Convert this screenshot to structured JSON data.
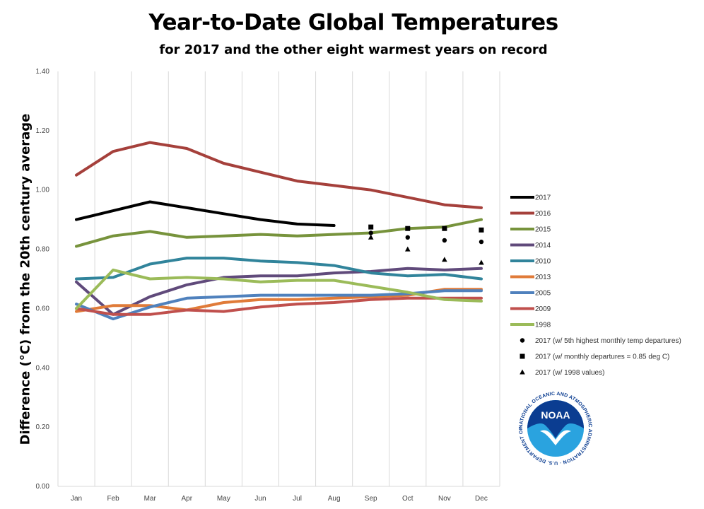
{
  "chart_data": {
    "type": "line",
    "title": "Year-to-Date Global Temperatures",
    "subtitle": "for 2017 and the other eight warmest years on record",
    "xlabel": "",
    "ylabel": "Difference (°C) from the 20th century average",
    "ylim": [
      0,
      1.4
    ],
    "yticks": [
      "0.00",
      "0.20",
      "0.40",
      "0.60",
      "0.80",
      "1.00",
      "1.20",
      "1.40"
    ],
    "categories": [
      "Jan",
      "Feb",
      "Mar",
      "Apr",
      "May",
      "Jun",
      "Jul",
      "Aug",
      "Sep",
      "Oct",
      "Nov",
      "Dec"
    ],
    "legend_position": "right",
    "grid": "vertical",
    "series": [
      {
        "name": "2017",
        "color": "#000000",
        "width": 4,
        "values": [
          0.9,
          0.93,
          0.96,
          0.94,
          0.92,
          0.9,
          0.885,
          0.88,
          null,
          null,
          null,
          null
        ]
      },
      {
        "name": "2016",
        "color": "#A5403B",
        "width": 4,
        "values": [
          1.05,
          1.13,
          1.16,
          1.14,
          1.09,
          1.06,
          1.03,
          1.015,
          1.0,
          0.975,
          0.95,
          0.94
        ]
      },
      {
        "name": "2015",
        "color": "#77933C",
        "width": 4,
        "values": [
          0.81,
          0.845,
          0.86,
          0.84,
          0.845,
          0.85,
          0.845,
          0.85,
          0.855,
          0.87,
          0.875,
          0.9
        ]
      },
      {
        "name": "2014",
        "color": "#604A7B",
        "width": 4,
        "values": [
          0.69,
          0.58,
          0.64,
          0.68,
          0.705,
          0.71,
          0.71,
          0.72,
          0.725,
          0.735,
          0.73,
          0.735
        ]
      },
      {
        "name": "2010",
        "color": "#31849B",
        "width": 4,
        "values": [
          0.7,
          0.705,
          0.75,
          0.77,
          0.77,
          0.76,
          0.755,
          0.745,
          0.72,
          0.71,
          0.715,
          0.7
        ]
      },
      {
        "name": "2013",
        "color": "#E07B39",
        "width": 4,
        "values": [
          0.59,
          0.61,
          0.61,
          0.595,
          0.62,
          0.63,
          0.63,
          0.635,
          0.64,
          0.645,
          0.665,
          0.665
        ]
      },
      {
        "name": "2005",
        "color": "#4F81BD",
        "width": 4,
        "values": [
          0.615,
          0.565,
          0.605,
          0.635,
          0.64,
          0.645,
          0.645,
          0.645,
          0.645,
          0.65,
          0.66,
          0.66
        ]
      },
      {
        "name": "2009",
        "color": "#C0504D",
        "width": 4,
        "values": [
          0.6,
          0.58,
          0.58,
          0.595,
          0.59,
          0.605,
          0.615,
          0.62,
          0.63,
          0.635,
          0.635,
          0.635
        ]
      },
      {
        "name": "1998",
        "color": "#9BBB59",
        "width": 4,
        "values": [
          0.6,
          0.73,
          0.7,
          0.705,
          0.7,
          0.69,
          0.695,
          0.695,
          0.675,
          0.655,
          0.63,
          0.625
        ]
      }
    ],
    "marker_series": [
      {
        "name": "2017 (w/ 5th highest monthly temp departures)",
        "marker": "circle",
        "x": [
          "Sep",
          "Oct",
          "Nov",
          "Dec"
        ],
        "values": [
          0.855,
          0.84,
          0.83,
          0.825
        ]
      },
      {
        "name": "2017 (w/ monthly departures = 0.85 deg C)",
        "marker": "square",
        "x": [
          "Sep",
          "Oct",
          "Nov",
          "Dec"
        ],
        "values": [
          0.875,
          0.87,
          0.87,
          0.865
        ]
      },
      {
        "name": "2017 (w/ 1998 values)",
        "marker": "triangle",
        "x": [
          "Sep",
          "Oct",
          "Nov",
          "Dec"
        ],
        "values": [
          0.84,
          0.8,
          0.765,
          0.755
        ]
      }
    ]
  },
  "logo": {
    "text": "NOAA",
    "ring_text": "NATIONAL OCEANIC AND ATMOSPHERIC ADMINISTRATION · U.S. DEPARTMENT OF COMMERCE",
    "colors": {
      "navy": "#0B3D91",
      "sky": "#2AA3DF"
    }
  }
}
